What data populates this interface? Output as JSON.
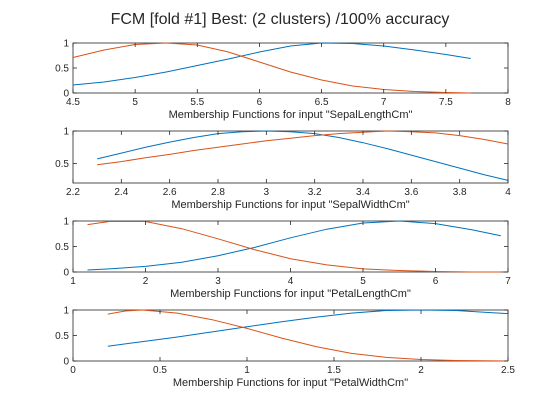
{
  "figure": {
    "title": "FCM [fold #1] Best: (2 clusters) /100% accuracy",
    "colors": {
      "cluster1": "#0072BD",
      "cluster2": "#D95319",
      "axes": "#262626"
    }
  },
  "chart_data": [
    {
      "type": "line",
      "xlabel": "Membership Functions for input \"SepalLengthCm\"",
      "xlim": [
        4.5,
        8
      ],
      "ylim": [
        0,
        1
      ],
      "xticks": [
        "4.5",
        "5",
        "5.5",
        "6",
        "6.5",
        "7",
        "7.5",
        "8"
      ],
      "yticks": [
        "0",
        "0.5",
        "1"
      ],
      "series": [
        {
          "x": [
            4.5,
            4.75,
            5.0,
            5.25,
            5.5,
            5.75,
            6.0,
            6.25,
            6.5,
            6.75,
            7.0,
            7.25,
            7.5,
            7.7
          ],
          "values": [
            0.16,
            0.22,
            0.31,
            0.42,
            0.55,
            0.68,
            0.82,
            0.94,
            1.0,
            0.99,
            0.94,
            0.86,
            0.77,
            0.69
          ]
        },
        {
          "x": [
            4.5,
            4.75,
            5.0,
            5.25,
            5.5,
            5.75,
            6.0,
            6.25,
            6.5,
            6.75,
            7.0,
            7.25,
            7.5,
            7.7
          ],
          "values": [
            0.71,
            0.86,
            0.97,
            1.0,
            0.96,
            0.82,
            0.62,
            0.42,
            0.26,
            0.14,
            0.07,
            0.03,
            0.01,
            0.0
          ]
        }
      ]
    },
    {
      "type": "line",
      "xlabel": "Membership Functions for input \"SepalWidthCm\"",
      "xlim": [
        2.2,
        4
      ],
      "ylim": [
        0.2,
        1
      ],
      "xticks": [
        "2.2",
        "2.4",
        "2.6",
        "2.8",
        "3",
        "3.2",
        "3.4",
        "3.6",
        "3.8",
        "4"
      ],
      "yticks": [
        "0.5",
        "1"
      ],
      "series": [
        {
          "x": [
            2.3,
            2.4,
            2.5,
            2.6,
            2.7,
            2.8,
            2.9,
            3.0,
            3.1,
            3.2,
            3.3,
            3.4,
            3.5,
            3.6,
            3.7,
            3.8,
            3.9,
            4.0
          ],
          "values": [
            0.57,
            0.66,
            0.75,
            0.83,
            0.9,
            0.96,
            0.99,
            1.0,
            0.99,
            0.96,
            0.9,
            0.82,
            0.73,
            0.63,
            0.53,
            0.43,
            0.33,
            0.24
          ]
        },
        {
          "x": [
            2.3,
            2.4,
            2.5,
            2.6,
            2.7,
            2.8,
            2.9,
            3.0,
            3.1,
            3.2,
            3.3,
            3.4,
            3.5,
            3.6,
            3.7,
            3.8,
            3.9,
            4.0
          ],
          "values": [
            0.48,
            0.53,
            0.59,
            0.64,
            0.7,
            0.75,
            0.8,
            0.85,
            0.89,
            0.93,
            0.96,
            0.98,
            1.0,
            0.99,
            0.97,
            0.93,
            0.87,
            0.8
          ]
        }
      ]
    },
    {
      "type": "line",
      "xlabel": "Membership Functions for input \"PetalLengthCm\"",
      "xlim": [
        1,
        7
      ],
      "ylim": [
        0,
        1
      ],
      "xticks": [
        "1",
        "2",
        "3",
        "4",
        "5",
        "6",
        "7"
      ],
      "yticks": [
        "0",
        "0.5",
        "1"
      ],
      "series": [
        {
          "x": [
            1.2,
            1.5,
            2.0,
            2.5,
            3.0,
            3.5,
            4.0,
            4.5,
            5.0,
            5.5,
            6.0,
            6.5,
            6.9
          ],
          "values": [
            0.04,
            0.06,
            0.11,
            0.19,
            0.32,
            0.48,
            0.67,
            0.84,
            0.96,
            1.0,
            0.95,
            0.83,
            0.71
          ]
        },
        {
          "x": [
            1.2,
            1.5,
            2.0,
            2.5,
            3.0,
            3.5,
            4.0,
            4.5,
            5.0,
            5.5,
            6.0,
            6.5,
            6.9
          ],
          "values": [
            0.93,
            0.99,
            0.99,
            0.85,
            0.65,
            0.44,
            0.26,
            0.14,
            0.06,
            0.03,
            0.01,
            0.0,
            0.0
          ]
        }
      ]
    },
    {
      "type": "line",
      "xlabel": "Membership Functions for input \"PetalWidthCm\"",
      "xlim": [
        0,
        2.5
      ],
      "ylim": [
        0,
        1
      ],
      "xticks": [
        "0",
        "0.5",
        "1",
        "1.5",
        "2",
        "2.5"
      ],
      "yticks": [
        "0",
        "0.5",
        "1"
      ],
      "series": [
        {
          "x": [
            0.2,
            0.4,
            0.6,
            0.8,
            1.0,
            1.2,
            1.4,
            1.6,
            1.8,
            2.0,
            2.2,
            2.4,
            2.5
          ],
          "values": [
            0.29,
            0.38,
            0.47,
            0.57,
            0.67,
            0.77,
            0.86,
            0.94,
            0.99,
            1.0,
            0.99,
            0.95,
            0.93
          ]
        },
        {
          "x": [
            0.2,
            0.3,
            0.4,
            0.6,
            0.8,
            1.0,
            1.2,
            1.4,
            1.6,
            1.8,
            2.0,
            2.2,
            2.5
          ],
          "values": [
            0.92,
            0.98,
            1.0,
            0.94,
            0.81,
            0.64,
            0.45,
            0.28,
            0.15,
            0.07,
            0.03,
            0.01,
            0.0
          ]
        }
      ]
    }
  ]
}
